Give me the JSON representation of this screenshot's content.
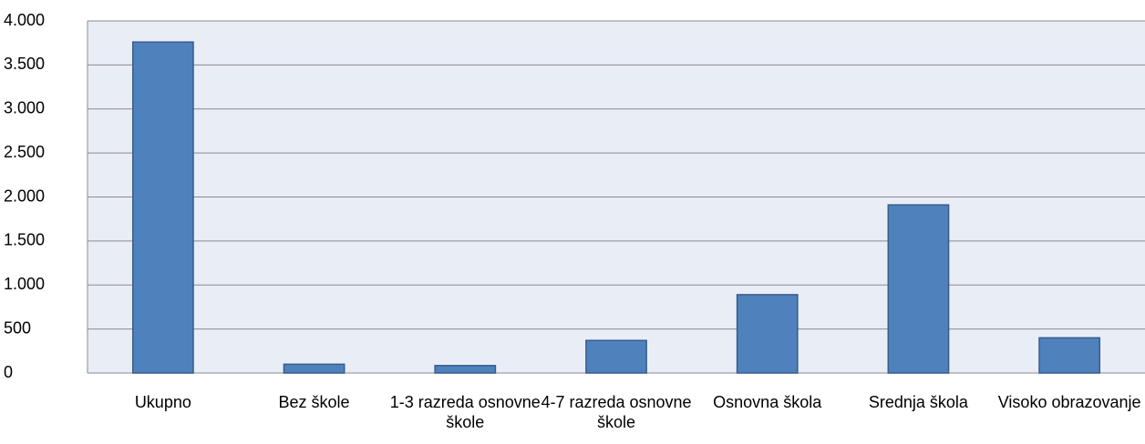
{
  "chart_data": {
    "type": "bar",
    "categories": [
      "Ukupno",
      "Bez škole",
      "1-3 razreda osnovne škole",
      "4-7 razreda osnovne škole",
      "Osnovna škola",
      "Srednja škola",
      "Visoko obrazovanje"
    ],
    "values": [
      3760,
      100,
      85,
      370,
      890,
      1910,
      400
    ],
    "color": "#4f81bd",
    "ylim": [
      0,
      4000
    ],
    "yticks": [
      0,
      500,
      {
        "value": 1000,
        "label": "1.000"
      },
      {
        "value": 1500,
        "label": "1.500"
      },
      {
        "value": 2000,
        "label": "2.000"
      },
      {
        "value": 2500,
        "label": "2.500"
      },
      {
        "value": 3000,
        "label": "3.000"
      },
      {
        "value": 3500,
        "label": "3.500"
      },
      {
        "value": 4000,
        "label": "4.000"
      }
    ],
    "grid": true
  }
}
